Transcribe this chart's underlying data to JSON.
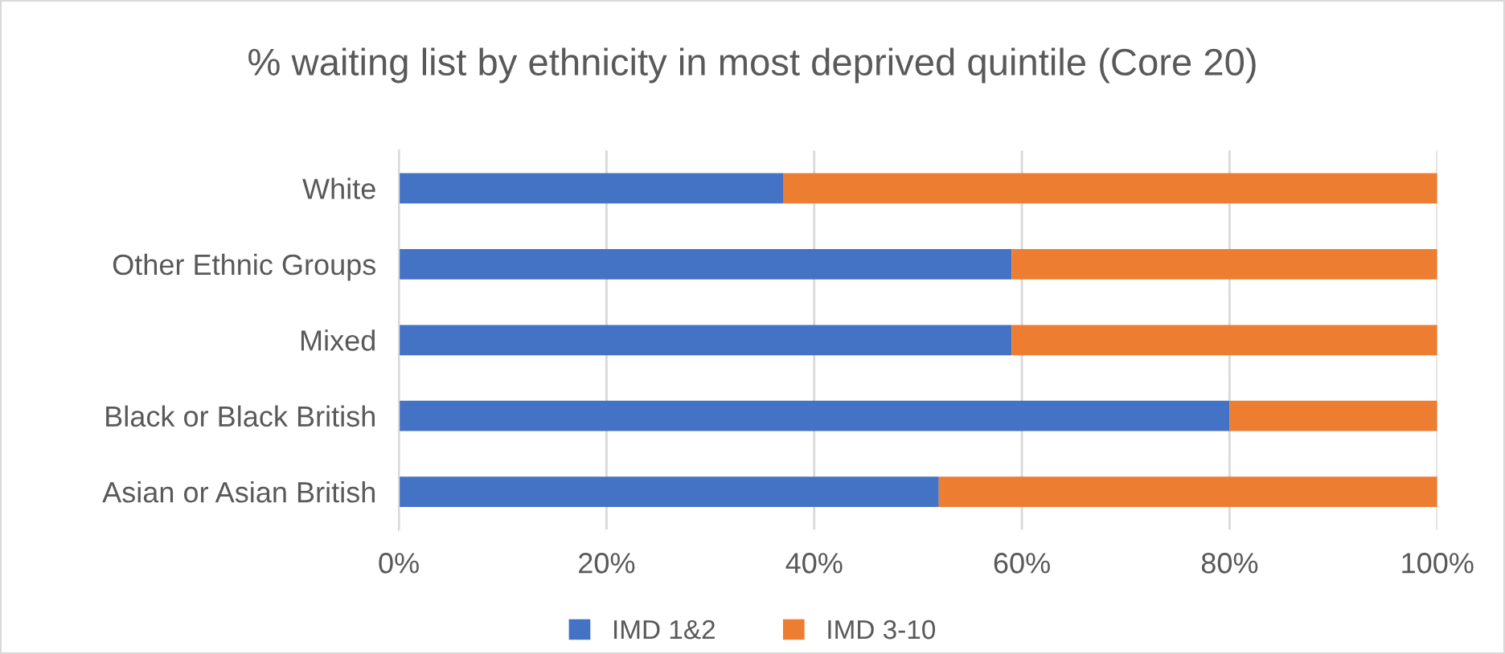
{
  "chart_data": {
    "type": "bar",
    "orientation": "horizontal",
    "stacked": true,
    "title": "% waiting list by ethnicity in most deprived quintile (Core 20)",
    "categories": [
      "White",
      "Other Ethnic Groups",
      "Mixed",
      "Black or Black British",
      "Asian or Asian British"
    ],
    "series": [
      {
        "name": "IMD 1&2",
        "color": "#4472c4",
        "values": [
          37,
          59,
          59,
          80,
          52
        ]
      },
      {
        "name": "IMD 3-10",
        "color": "#ed7d31",
        "values": [
          63,
          41,
          41,
          20,
          48
        ]
      }
    ],
    "xlim": [
      0,
      100
    ],
    "xticks": [
      {
        "value": 0,
        "label": "0%"
      },
      {
        "value": 20,
        "label": "20%"
      },
      {
        "value": 40,
        "label": "40%"
      },
      {
        "value": 60,
        "label": "60%"
      },
      {
        "value": 80,
        "label": "80%"
      },
      {
        "value": 100,
        "label": "100%"
      }
    ],
    "grid": "x",
    "legend": "bottom"
  }
}
